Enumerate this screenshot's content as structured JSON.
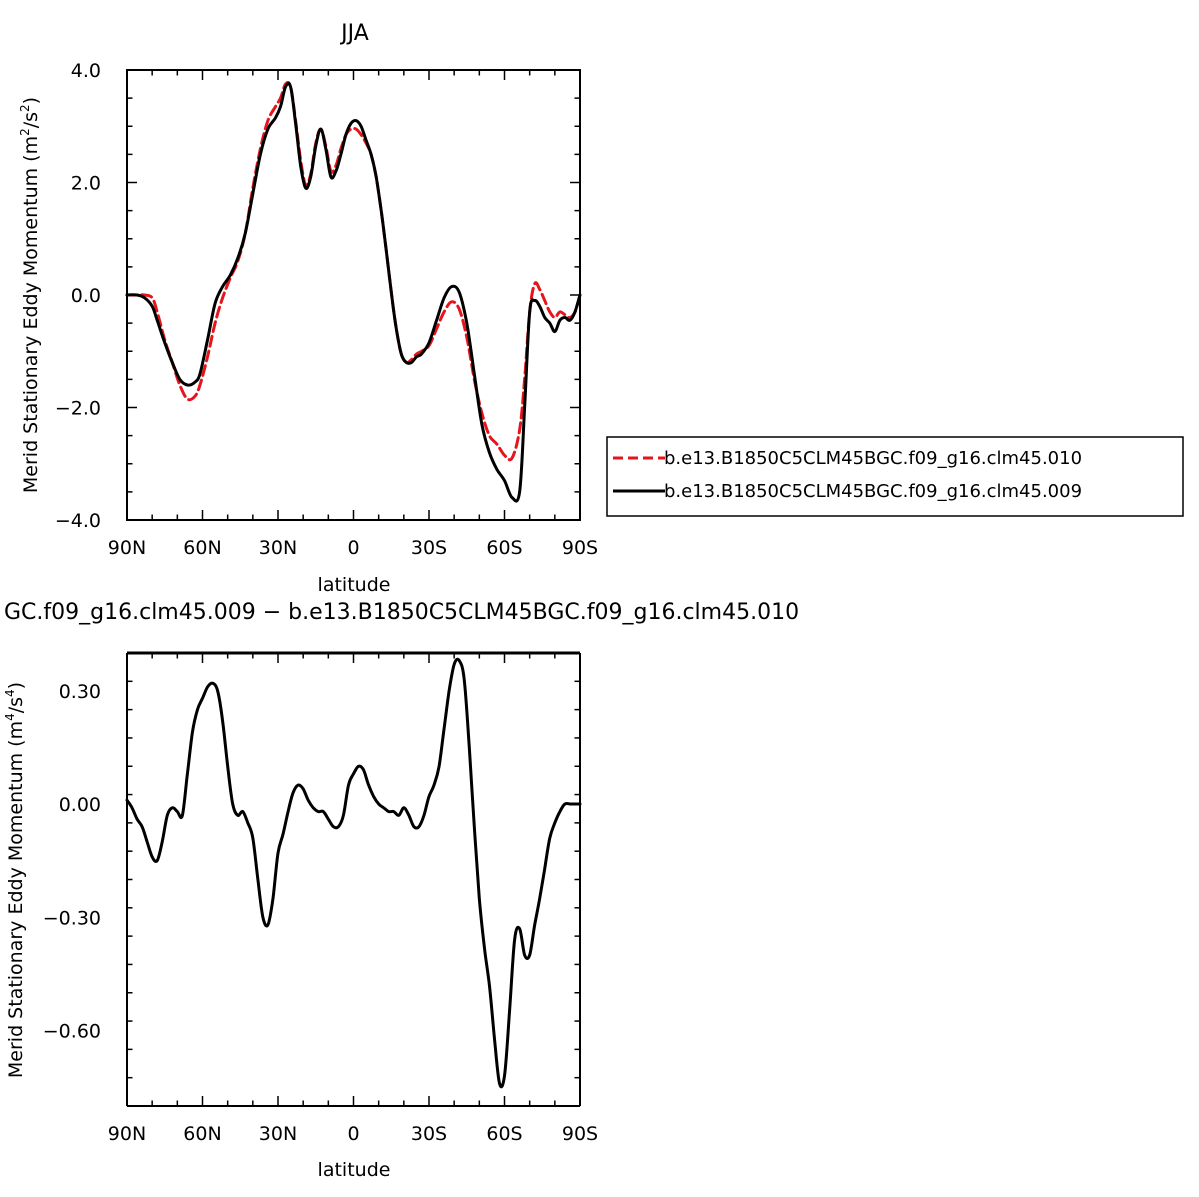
{
  "chart_data": [
    {
      "type": "line",
      "title": "JJA",
      "xlabel": "latitude",
      "ylabel_text": "Merid Stationary Eddy Momentum (m",
      "ylabel_sup1": "2",
      "ylabel_mid": "/s",
      "ylabel_sup2": "2",
      "ylabel_end": ")",
      "xlim": [
        90,
        -90
      ],
      "ylim": [
        -4,
        4
      ],
      "x_ticks": [
        90,
        60,
        30,
        0,
        -30,
        -60,
        -90
      ],
      "x_tick_labels": [
        "90N",
        "60N",
        "30N",
        "0",
        "30S",
        "60S",
        "90S"
      ],
      "y_ticks": [
        4,
        2,
        0,
        -2,
        -4
      ],
      "y_tick_labels": [
        "4.0",
        "2.0",
        "0.0",
        "−2.0",
        "−4.0"
      ],
      "legend": "right",
      "series": [
        {
          "name": "b.e13.B1850C5CLM45BGC.f09_g16.clm45.010",
          "color": "#e8141c",
          "dash": "dashed",
          "x": [
            90,
            86,
            83,
            80,
            78,
            75,
            72,
            69,
            66,
            63,
            61,
            58,
            55,
            52,
            49,
            46,
            43,
            40,
            37,
            34,
            31,
            29,
            27,
            25,
            23,
            21,
            19,
            17,
            15,
            13,
            11,
            9,
            7,
            5,
            3,
            1,
            -1,
            -3,
            -5,
            -7,
            -9,
            -11,
            -13,
            -15,
            -17,
            -19,
            -21,
            -23,
            -25,
            -27,
            -30,
            -33,
            -36,
            -39,
            -42,
            -45,
            -48,
            -51,
            -54,
            -57,
            -60,
            -63,
            -66,
            -68,
            -70,
            -72,
            -74,
            -76,
            -78,
            -80,
            -82,
            -84,
            -86,
            -88,
            -90
          ],
          "y": [
            0,
            0,
            0,
            -0.05,
            -0.3,
            -0.8,
            -1.2,
            -1.6,
            -1.85,
            -1.8,
            -1.6,
            -1.1,
            -0.5,
            -0.05,
            0.3,
            0.6,
            1.1,
            1.9,
            2.6,
            3.1,
            3.35,
            3.5,
            3.75,
            3.7,
            3.1,
            2.4,
            1.95,
            2.15,
            2.7,
            2.95,
            2.65,
            2.2,
            2.3,
            2.6,
            2.85,
            2.95,
            2.95,
            2.85,
            2.7,
            2.5,
            2.1,
            1.5,
            0.8,
            0.05,
            -0.6,
            -1.05,
            -1.2,
            -1.15,
            -1.05,
            -1.0,
            -0.9,
            -0.6,
            -0.3,
            -0.12,
            -0.25,
            -0.75,
            -1.5,
            -2.1,
            -2.5,
            -2.65,
            -2.85,
            -2.9,
            -2.4,
            -1.5,
            -0.3,
            0.2,
            0.1,
            -0.1,
            -0.3,
            -0.4,
            -0.3,
            -0.35,
            -0.4,
            -0.3,
            0
          ]
        },
        {
          "name": "b.e13.B1850C5CLM45BGC.f09_g16.clm45.009",
          "color": "#000000",
          "dash": "solid",
          "x": [
            90,
            86,
            83,
            80,
            78,
            75,
            72,
            69,
            66,
            63,
            61,
            58,
            55,
            52,
            49,
            46,
            43,
            40,
            37,
            34,
            31,
            29,
            27,
            25,
            23,
            21,
            19,
            17,
            15,
            13,
            11,
            9,
            7,
            5,
            3,
            1,
            -1,
            -3,
            -5,
            -7,
            -9,
            -11,
            -13,
            -15,
            -17,
            -19,
            -21,
            -23,
            -25,
            -27,
            -30,
            -33,
            -36,
            -39,
            -42,
            -45,
            -48,
            -51,
            -54,
            -57,
            -60,
            -63,
            -66,
            -68,
            -70,
            -72,
            -74,
            -76,
            -78,
            -80,
            -82,
            -84,
            -86,
            -88,
            -90
          ],
          "y": [
            0,
            0,
            -0.05,
            -0.2,
            -0.45,
            -0.85,
            -1.2,
            -1.5,
            -1.6,
            -1.55,
            -1.4,
            -0.8,
            -0.15,
            0.15,
            0.35,
            0.65,
            1.1,
            1.8,
            2.5,
            2.95,
            3.15,
            3.35,
            3.7,
            3.7,
            3.05,
            2.3,
            1.9,
            2.1,
            2.65,
            2.95,
            2.6,
            2.1,
            2.2,
            2.5,
            2.85,
            3.05,
            3.1,
            3.0,
            2.75,
            2.5,
            2.1,
            1.5,
            0.8,
            0.05,
            -0.6,
            -1.05,
            -1.2,
            -1.2,
            -1.1,
            -1.05,
            -0.85,
            -0.45,
            -0.05,
            0.15,
            0.05,
            -0.5,
            -1.4,
            -2.3,
            -2.8,
            -3.1,
            -3.3,
            -3.6,
            -3.5,
            -2.0,
            -0.3,
            -0.1,
            -0.2,
            -0.4,
            -0.5,
            -0.65,
            -0.45,
            -0.4,
            -0.45,
            -0.3,
            0
          ]
        }
      ]
    },
    {
      "type": "line",
      "title": "GC.f09_g16.clm45.009 − b.e13.B1850C5CLM45BGC.f09_g16.clm45.010",
      "xlabel": "latitude",
      "ylabel_text": "Merid Stationary Eddy Momentum (m",
      "ylabel_sup1": "4",
      "ylabel_mid": "/s",
      "ylabel_sup2": "4",
      "ylabel_end": ")",
      "xlim": [
        90,
        -90
      ],
      "ylim": [
        -0.8,
        0.4
      ],
      "x_ticks": [
        90,
        60,
        30,
        0,
        -30,
        -60,
        -90
      ],
      "x_tick_labels": [
        "90N",
        "60N",
        "30N",
        "0",
        "30S",
        "60S",
        "90S"
      ],
      "y_ticks": [
        0.3,
        0,
        -0.3,
        -0.6
      ],
      "y_tick_labels": [
        "0.30",
        "0.00",
        "−0.30",
        "−0.60"
      ],
      "series": [
        {
          "color": "#000000",
          "dash": "solid",
          "x": [
            90,
            88,
            86,
            84,
            82,
            80,
            78,
            76,
            74,
            72,
            70,
            68,
            66,
            64,
            62,
            60,
            58,
            56,
            54,
            52,
            50,
            48,
            46,
            44,
            42,
            40,
            38,
            36,
            34,
            32,
            30,
            28,
            26,
            24,
            22,
            20,
            18,
            16,
            14,
            12,
            10,
            8,
            6,
            4,
            2,
            0,
            -2,
            -4,
            -6,
            -8,
            -10,
            -12,
            -14,
            -16,
            -18,
            -20,
            -22,
            -24,
            -26,
            -28,
            -30,
            -32,
            -34,
            -36,
            -38,
            -40,
            -42,
            -44,
            -46,
            -48,
            -50,
            -52,
            -54,
            -56,
            -58,
            -60,
            -62,
            -64,
            -66,
            -68,
            -70,
            -72,
            -74,
            -76,
            -78,
            -80,
            -82,
            -84,
            -86,
            -88,
            -90
          ],
          "y": [
            0.01,
            -0.01,
            -0.04,
            -0.06,
            -0.1,
            -0.14,
            -0.15,
            -0.1,
            -0.03,
            -0.01,
            -0.02,
            -0.03,
            0.08,
            0.19,
            0.25,
            0.28,
            0.31,
            0.32,
            0.3,
            0.22,
            0.1,
            0,
            -0.03,
            -0.02,
            -0.05,
            -0.09,
            -0.2,
            -0.3,
            -0.32,
            -0.25,
            -0.13,
            -0.08,
            -0.02,
            0.03,
            0.05,
            0.04,
            0.01,
            -0.01,
            -0.02,
            -0.02,
            -0.04,
            -0.06,
            -0.06,
            -0.03,
            0.05,
            0.08,
            0.1,
            0.09,
            0.05,
            0.02,
            0,
            -0.01,
            -0.02,
            -0.02,
            -0.03,
            -0.01,
            -0.03,
            -0.06,
            -0.06,
            -0.03,
            0.02,
            0.05,
            0.1,
            0.2,
            0.3,
            0.37,
            0.38,
            0.33,
            0.15,
            -0.06,
            -0.25,
            -0.38,
            -0.48,
            -0.62,
            -0.74,
            -0.72,
            -0.55,
            -0.36,
            -0.33,
            -0.4,
            -0.4,
            -0.32,
            -0.25,
            -0.17,
            -0.09,
            -0.05,
            -0.02,
            0,
            0,
            0,
            0
          ]
        }
      ]
    }
  ]
}
